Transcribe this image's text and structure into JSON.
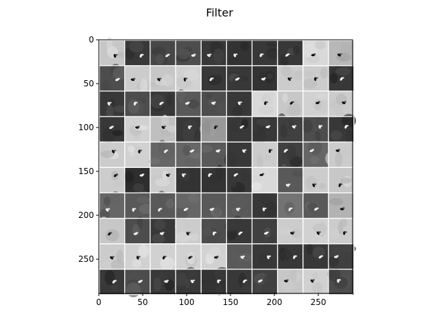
{
  "chart_data": {
    "type": "heatmap",
    "title": "Filter",
    "xlabel": "",
    "ylabel": "",
    "colormap": "gray",
    "grid": false,
    "xlim": [
      0,
      289
    ],
    "ylim": [
      289,
      0
    ],
    "x_ticks": [
      0,
      50,
      100,
      150,
      200,
      250
    ],
    "y_ticks": [
      0,
      50,
      100,
      150,
      200,
      250
    ],
    "x_tick_labels": [
      "0",
      "50",
      "100",
      "150",
      "200",
      "250"
    ],
    "y_tick_labels": [
      "0",
      "50",
      "100",
      "150",
      "200",
      "250"
    ],
    "mosaic": {
      "rows": 10,
      "cols": 10,
      "tile_size": 28,
      "separator": 1,
      "separator_color": "#ffffff",
      "tile_mean_gray": [
        [
          0.78,
          0.22,
          0.28,
          0.3,
          0.22,
          0.2,
          0.22,
          0.22,
          0.85,
          0.72
        ],
        [
          0.3,
          0.8,
          0.78,
          0.82,
          0.22,
          0.22,
          0.2,
          0.8,
          0.8,
          0.22
        ],
        [
          0.22,
          0.3,
          0.22,
          0.35,
          0.3,
          0.22,
          0.85,
          0.78,
          0.82,
          0.8
        ],
        [
          0.22,
          0.82,
          0.75,
          0.22,
          0.6,
          0.22,
          0.22,
          0.25,
          0.3,
          0.22
        ],
        [
          0.8,
          0.82,
          0.4,
          0.4,
          0.35,
          0.22,
          0.8,
          0.25,
          0.4,
          0.8
        ],
        [
          0.8,
          0.18,
          0.8,
          0.2,
          0.2,
          0.22,
          0.85,
          0.35,
          0.8,
          0.78
        ],
        [
          0.4,
          0.35,
          0.35,
          0.4,
          0.35,
          0.35,
          0.22,
          0.45,
          0.35,
          0.7
        ],
        [
          0.78,
          0.3,
          0.22,
          0.8,
          0.3,
          0.22,
          0.25,
          0.8,
          0.82,
          0.8
        ],
        [
          0.8,
          0.82,
          0.82,
          0.82,
          0.82,
          0.35,
          0.22,
          0.22,
          0.22,
          0.25
        ],
        [
          0.22,
          0.3,
          0.22,
          0.22,
          0.2,
          0.22,
          0.25,
          0.78,
          0.82,
          0.3
        ]
      ]
    }
  }
}
